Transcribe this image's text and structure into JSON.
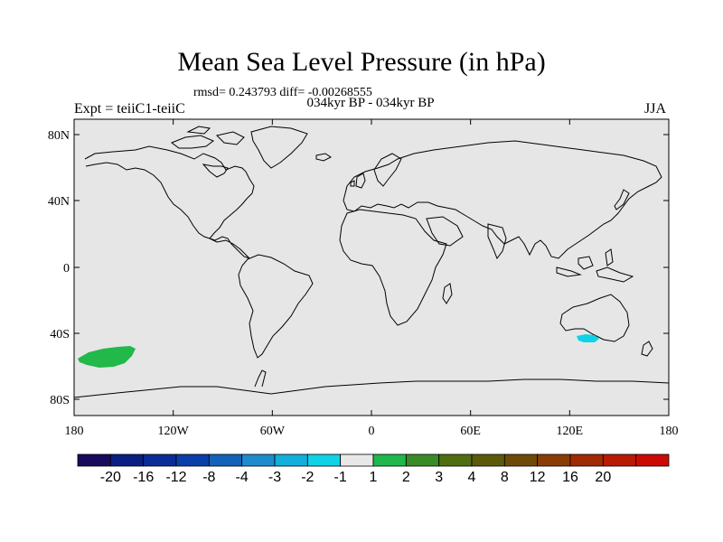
{
  "title": "Mean Sea Level Pressure (in hPa)",
  "stats": "rmsd= 0.243793 diff= -0.00268555",
  "subtitle": "034kyr BP - 034kyr BP",
  "experiment": "Expt = teiiC1-teiiC",
  "season": "JJA",
  "lat_ticks": [
    "80N",
    "40N",
    "0",
    "40S",
    "80S"
  ],
  "lon_ticks": [
    "180",
    "120W",
    "60W",
    "0",
    "60E",
    "120E",
    "180"
  ],
  "colorbar": {
    "colors": [
      "#1a0a5e",
      "#0b1e82",
      "#0a2c96",
      "#0a3ea8",
      "#1262b8",
      "#1e8ccc",
      "#12aedc",
      "#10d2e6",
      "#e8e8e8",
      "#20b84c",
      "#3a8a28",
      "#4e6e10",
      "#5a5a0a",
      "#6e4a08",
      "#8a3c06",
      "#a02a04",
      "#b81a04",
      "#cc0a04"
    ],
    "labels": [
      "-20",
      "-16",
      "-12",
      "-8",
      "-4",
      "-3",
      "-2",
      "-1",
      "1",
      "2",
      "3",
      "4",
      "8",
      "12",
      "16",
      "20"
    ]
  },
  "ocean_color": "#e6e6e6",
  "anomaly_regions": [
    {
      "name": "south-pacific-positive",
      "color": "#22b84a"
    },
    {
      "name": "south-of-australia-negative",
      "color": "#10d2e6"
    }
  ]
}
